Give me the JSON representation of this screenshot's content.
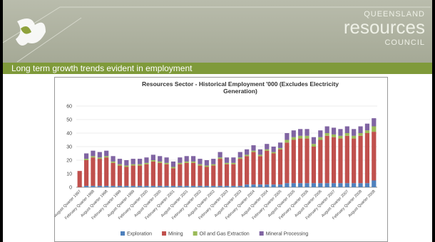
{
  "header": {
    "org_line1": "QUEENSLAND",
    "org_line2": "resources",
    "org_line3": "COUNCIL",
    "subtitle": "Long term growth trends evident in employment"
  },
  "chart_data": {
    "type": "bar",
    "stacked": true,
    "title": "Resources Sector - Historical Employment '000 (Excludes Electricity Generation)",
    "categories": [
      "August Quarter 1997",
      null,
      "February Quarter 1998",
      null,
      "August Quarter 1998",
      null,
      "February Quarter 1999",
      null,
      "August Quarter 1999",
      null,
      "February Quarter 2000",
      null,
      "August Quarter 2000",
      null,
      "February Quarter 2001",
      null,
      "August Quarter 2001",
      null,
      "February Quarter 2002",
      null,
      "August Quarter 2002",
      null,
      "February Quarter 2003",
      null,
      "August Quarter 2003",
      null,
      "February Quarter 2004",
      null,
      "August Quarter 2004",
      null,
      "February Quarter 2005",
      null,
      "August Quarter 2005",
      null,
      "February Quarter 2006",
      null,
      "August Quarter 2006",
      null,
      "February Quarter 2007",
      null,
      "August Quarter 2007",
      null,
      "February Quarter 2008",
      null,
      "August Quarter 2008"
    ],
    "series": [
      {
        "name": "Exploration",
        "color": "#4f81bd",
        "values": [
          0,
          1,
          1,
          1,
          1,
          1,
          1,
          1,
          1,
          1,
          1,
          1,
          1,
          1,
          1,
          1,
          1,
          1,
          1,
          1,
          1,
          1,
          1,
          1,
          1,
          2,
          2,
          2,
          2,
          2,
          2,
          3,
          3,
          3,
          3,
          3,
          3,
          3,
          3,
          3,
          3,
          3,
          3,
          3,
          5
        ]
      },
      {
        "name": "Mining",
        "color": "#c0504d",
        "values": [
          12,
          19,
          21,
          20,
          21,
          17,
          15,
          14,
          15,
          15,
          16,
          18,
          17,
          16,
          13,
          16,
          17,
          17,
          15,
          14,
          15,
          20,
          16,
          16,
          20,
          21,
          24,
          21,
          25,
          23,
          26,
          30,
          32,
          33,
          33,
          27,
          32,
          35,
          34,
          33,
          35,
          33,
          35,
          37,
          36
        ]
      },
      {
        "name": "Oil and Gas Extraction",
        "color": "#9bbb59",
        "values": [
          0,
          1,
          1,
          1,
          1,
          1,
          1,
          1,
          1,
          1,
          1,
          1,
          1,
          1,
          1,
          1,
          1,
          1,
          1,
          1,
          1,
          1,
          1,
          1,
          1,
          1,
          1,
          1,
          1,
          1,
          1,
          2,
          2,
          2,
          2,
          2,
          2,
          2,
          2,
          2,
          2,
          2,
          2,
          2,
          4
        ]
      },
      {
        "name": "Mineral Processing",
        "color": "#8064a2",
        "values": [
          0,
          4,
          4,
          4,
          4,
          4,
          4,
          4,
          4,
          4,
          4,
          4,
          4,
          4,
          4,
          4,
          4,
          4,
          4,
          4,
          4,
          4,
          4,
          4,
          4,
          4,
          4,
          4,
          4,
          4,
          4,
          5,
          5,
          5,
          5,
          5,
          5,
          5,
          5,
          5,
          5,
          5,
          5,
          5,
          6
        ]
      }
    ],
    "ylim": [
      0,
      60
    ],
    "yticks": [
      0,
      10,
      20,
      30,
      40,
      50,
      60
    ],
    "grid": true,
    "legend": "bottom"
  }
}
